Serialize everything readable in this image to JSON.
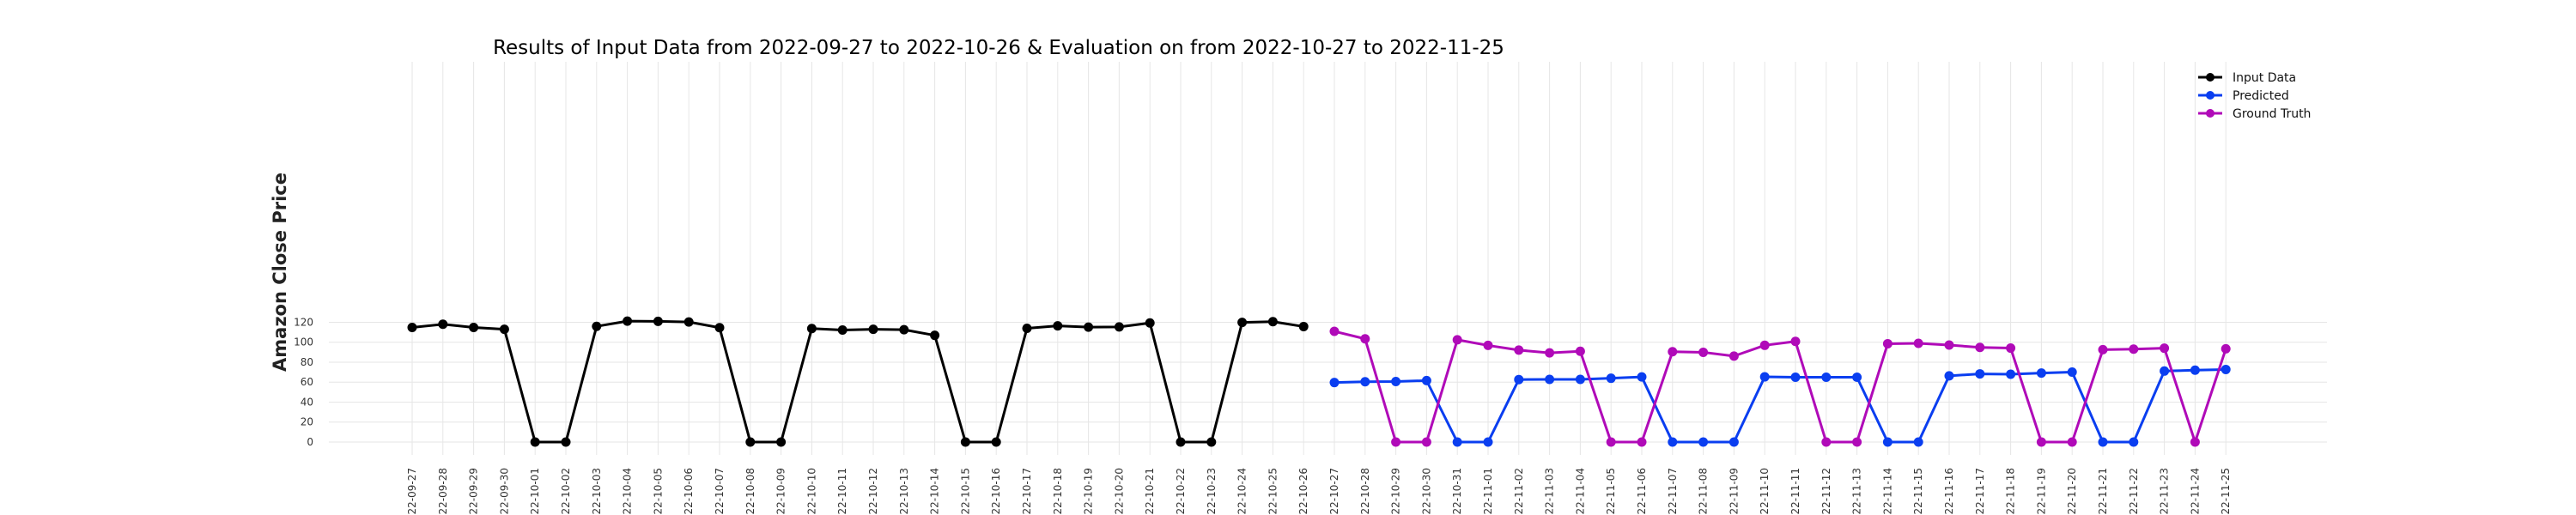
{
  "chart_data": {
    "type": "line",
    "title": "Results of Input Data from 2022-09-27 to 2022-10-26 & Evaluation on from 2022-10-27 to 2022-11-25",
    "xlabel": "",
    "ylabel": "Amazon Close Price",
    "ylim": [
      -5,
      127
    ],
    "yticks": [
      0,
      20,
      40,
      60,
      80,
      100,
      120
    ],
    "grid": true,
    "legend_position": "top-right",
    "x": [
      "2022-09-27",
      "2022-09-28",
      "2022-09-29",
      "2022-09-30",
      "2022-10-01",
      "2022-10-02",
      "2022-10-03",
      "2022-10-04",
      "2022-10-05",
      "2022-10-06",
      "2022-10-07",
      "2022-10-08",
      "2022-10-09",
      "2022-10-10",
      "2022-10-11",
      "2022-10-12",
      "2022-10-13",
      "2022-10-14",
      "2022-10-15",
      "2022-10-16",
      "2022-10-17",
      "2022-10-18",
      "2022-10-19",
      "2022-10-20",
      "2022-10-21",
      "2022-10-22",
      "2022-10-23",
      "2022-10-24",
      "2022-10-25",
      "2022-10-26",
      "2022-10-27",
      "2022-10-28",
      "2022-10-29",
      "2022-10-30",
      "2022-10-31",
      "2022-11-01",
      "2022-11-02",
      "2022-11-03",
      "2022-11-04",
      "2022-11-05",
      "2022-11-06",
      "2022-11-07",
      "2022-11-08",
      "2022-11-09",
      "2022-11-10",
      "2022-11-11",
      "2022-11-12",
      "2022-11-13",
      "2022-11-14",
      "2022-11-15",
      "2022-11-16",
      "2022-11-17",
      "2022-11-18",
      "2022-11-19",
      "2022-11-20",
      "2022-11-21",
      "2022-11-22",
      "2022-11-23",
      "2022-11-24",
      "2022-11-25"
    ],
    "xtick_labels": [
      "22-09-27",
      "22-09-28",
      "22-09-29",
      "22-09-30",
      "22-10-01",
      "22-10-02",
      "22-10-03",
      "22-10-04",
      "22-10-05",
      "22-10-06",
      "22-10-07",
      "22-10-08",
      "22-10-09",
      "22-10-10",
      "22-10-11",
      "22-10-12",
      "22-10-13",
      "22-10-14",
      "22-10-15",
      "22-10-16",
      "22-10-17",
      "22-10-18",
      "22-10-19",
      "22-10-20",
      "22-10-21",
      "22-10-22",
      "22-10-23",
      "22-10-24",
      "22-10-25",
      "22-10-26",
      "22-10-27",
      "22-10-28",
      "22-10-29",
      "22-10-30",
      "22-10-31",
      "22-11-01",
      "22-11-02",
      "22-11-03",
      "22-11-04",
      "22-11-05",
      "22-11-06",
      "22-11-07",
      "22-11-08",
      "22-11-09",
      "22-11-10",
      "22-11-11",
      "22-11-12",
      "22-11-13",
      "22-11-14",
      "22-11-15",
      "22-11-16",
      "22-11-17",
      "22-11-18",
      "22-11-19",
      "22-11-20",
      "22-11-21",
      "22-11-22",
      "22-11-23",
      "22-11-24",
      "22-11-25"
    ],
    "series": [
      {
        "name": "Input Data",
        "color": "#000000",
        "x": [
          "2022-09-27",
          "2022-09-28",
          "2022-09-29",
          "2022-09-30",
          "2022-10-01",
          "2022-10-02",
          "2022-10-03",
          "2022-10-04",
          "2022-10-05",
          "2022-10-06",
          "2022-10-07",
          "2022-10-08",
          "2022-10-09",
          "2022-10-10",
          "2022-10-11",
          "2022-10-12",
          "2022-10-13",
          "2022-10-14",
          "2022-10-15",
          "2022-10-16",
          "2022-10-17",
          "2022-10-18",
          "2022-10-19",
          "2022-10-20",
          "2022-10-21",
          "2022-10-22",
          "2022-10-23",
          "2022-10-24",
          "2022-10-25",
          "2022-10-26"
        ],
        "values": [
          114.8,
          118.0,
          114.8,
          113.0,
          0,
          0,
          115.9,
          121.1,
          120.9,
          120.3,
          114.6,
          0,
          0,
          113.7,
          112.2,
          113.0,
          112.5,
          106.9,
          0,
          0,
          113.9,
          116.4,
          115.1,
          115.3,
          119.3,
          0,
          0,
          119.8,
          120.6,
          115.7
        ]
      },
      {
        "name": "Predicted",
        "color": "#0a3ef0",
        "x": [
          "2022-10-27",
          "2022-10-28",
          "2022-10-29",
          "2022-10-30",
          "2022-10-31",
          "2022-11-01",
          "2022-11-02",
          "2022-11-03",
          "2022-11-04",
          "2022-11-05",
          "2022-11-06",
          "2022-11-07",
          "2022-11-08",
          "2022-11-09",
          "2022-11-10",
          "2022-11-11",
          "2022-11-12",
          "2022-11-13",
          "2022-11-14",
          "2022-11-15",
          "2022-11-16",
          "2022-11-17",
          "2022-11-18",
          "2022-11-19",
          "2022-11-20",
          "2022-11-21",
          "2022-11-22",
          "2022-11-23",
          "2022-11-24",
          "2022-11-25"
        ],
        "values": [
          59.6,
          60.4,
          60.6,
          61.6,
          0,
          0,
          62.6,
          62.8,
          62.8,
          63.9,
          65.2,
          0,
          0,
          0,
          65.3,
          64.9,
          64.9,
          64.9,
          0,
          0,
          66.3,
          68.3,
          67.9,
          69.1,
          70.1,
          0,
          0,
          71.1,
          72.0,
          72.7
        ]
      },
      {
        "name": "Ground Truth",
        "color": "#b00ab8",
        "x": [
          "2022-10-27",
          "2022-10-28",
          "2022-10-29",
          "2022-10-30",
          "2022-10-31",
          "2022-11-01",
          "2022-11-02",
          "2022-11-03",
          "2022-11-04",
          "2022-11-05",
          "2022-11-06",
          "2022-11-07",
          "2022-11-08",
          "2022-11-09",
          "2022-11-10",
          "2022-11-11",
          "2022-11-12",
          "2022-11-13",
          "2022-11-14",
          "2022-11-15",
          "2022-11-16",
          "2022-11-17",
          "2022-11-18",
          "2022-11-19",
          "2022-11-20",
          "2022-11-21",
          "2022-11-22",
          "2022-11-23",
          "2022-11-24",
          "2022-11-25"
        ],
        "values": [
          110.9,
          103.4,
          0,
          0,
          102.4,
          96.8,
          92.1,
          89.3,
          90.9,
          0,
          0,
          90.5,
          89.9,
          86.1,
          96.9,
          100.8,
          0,
          0,
          98.5,
          98.9,
          97.2,
          94.8,
          94.1,
          0,
          0,
          92.5,
          93.1,
          94.0,
          0,
          93.4
        ]
      }
    ]
  }
}
